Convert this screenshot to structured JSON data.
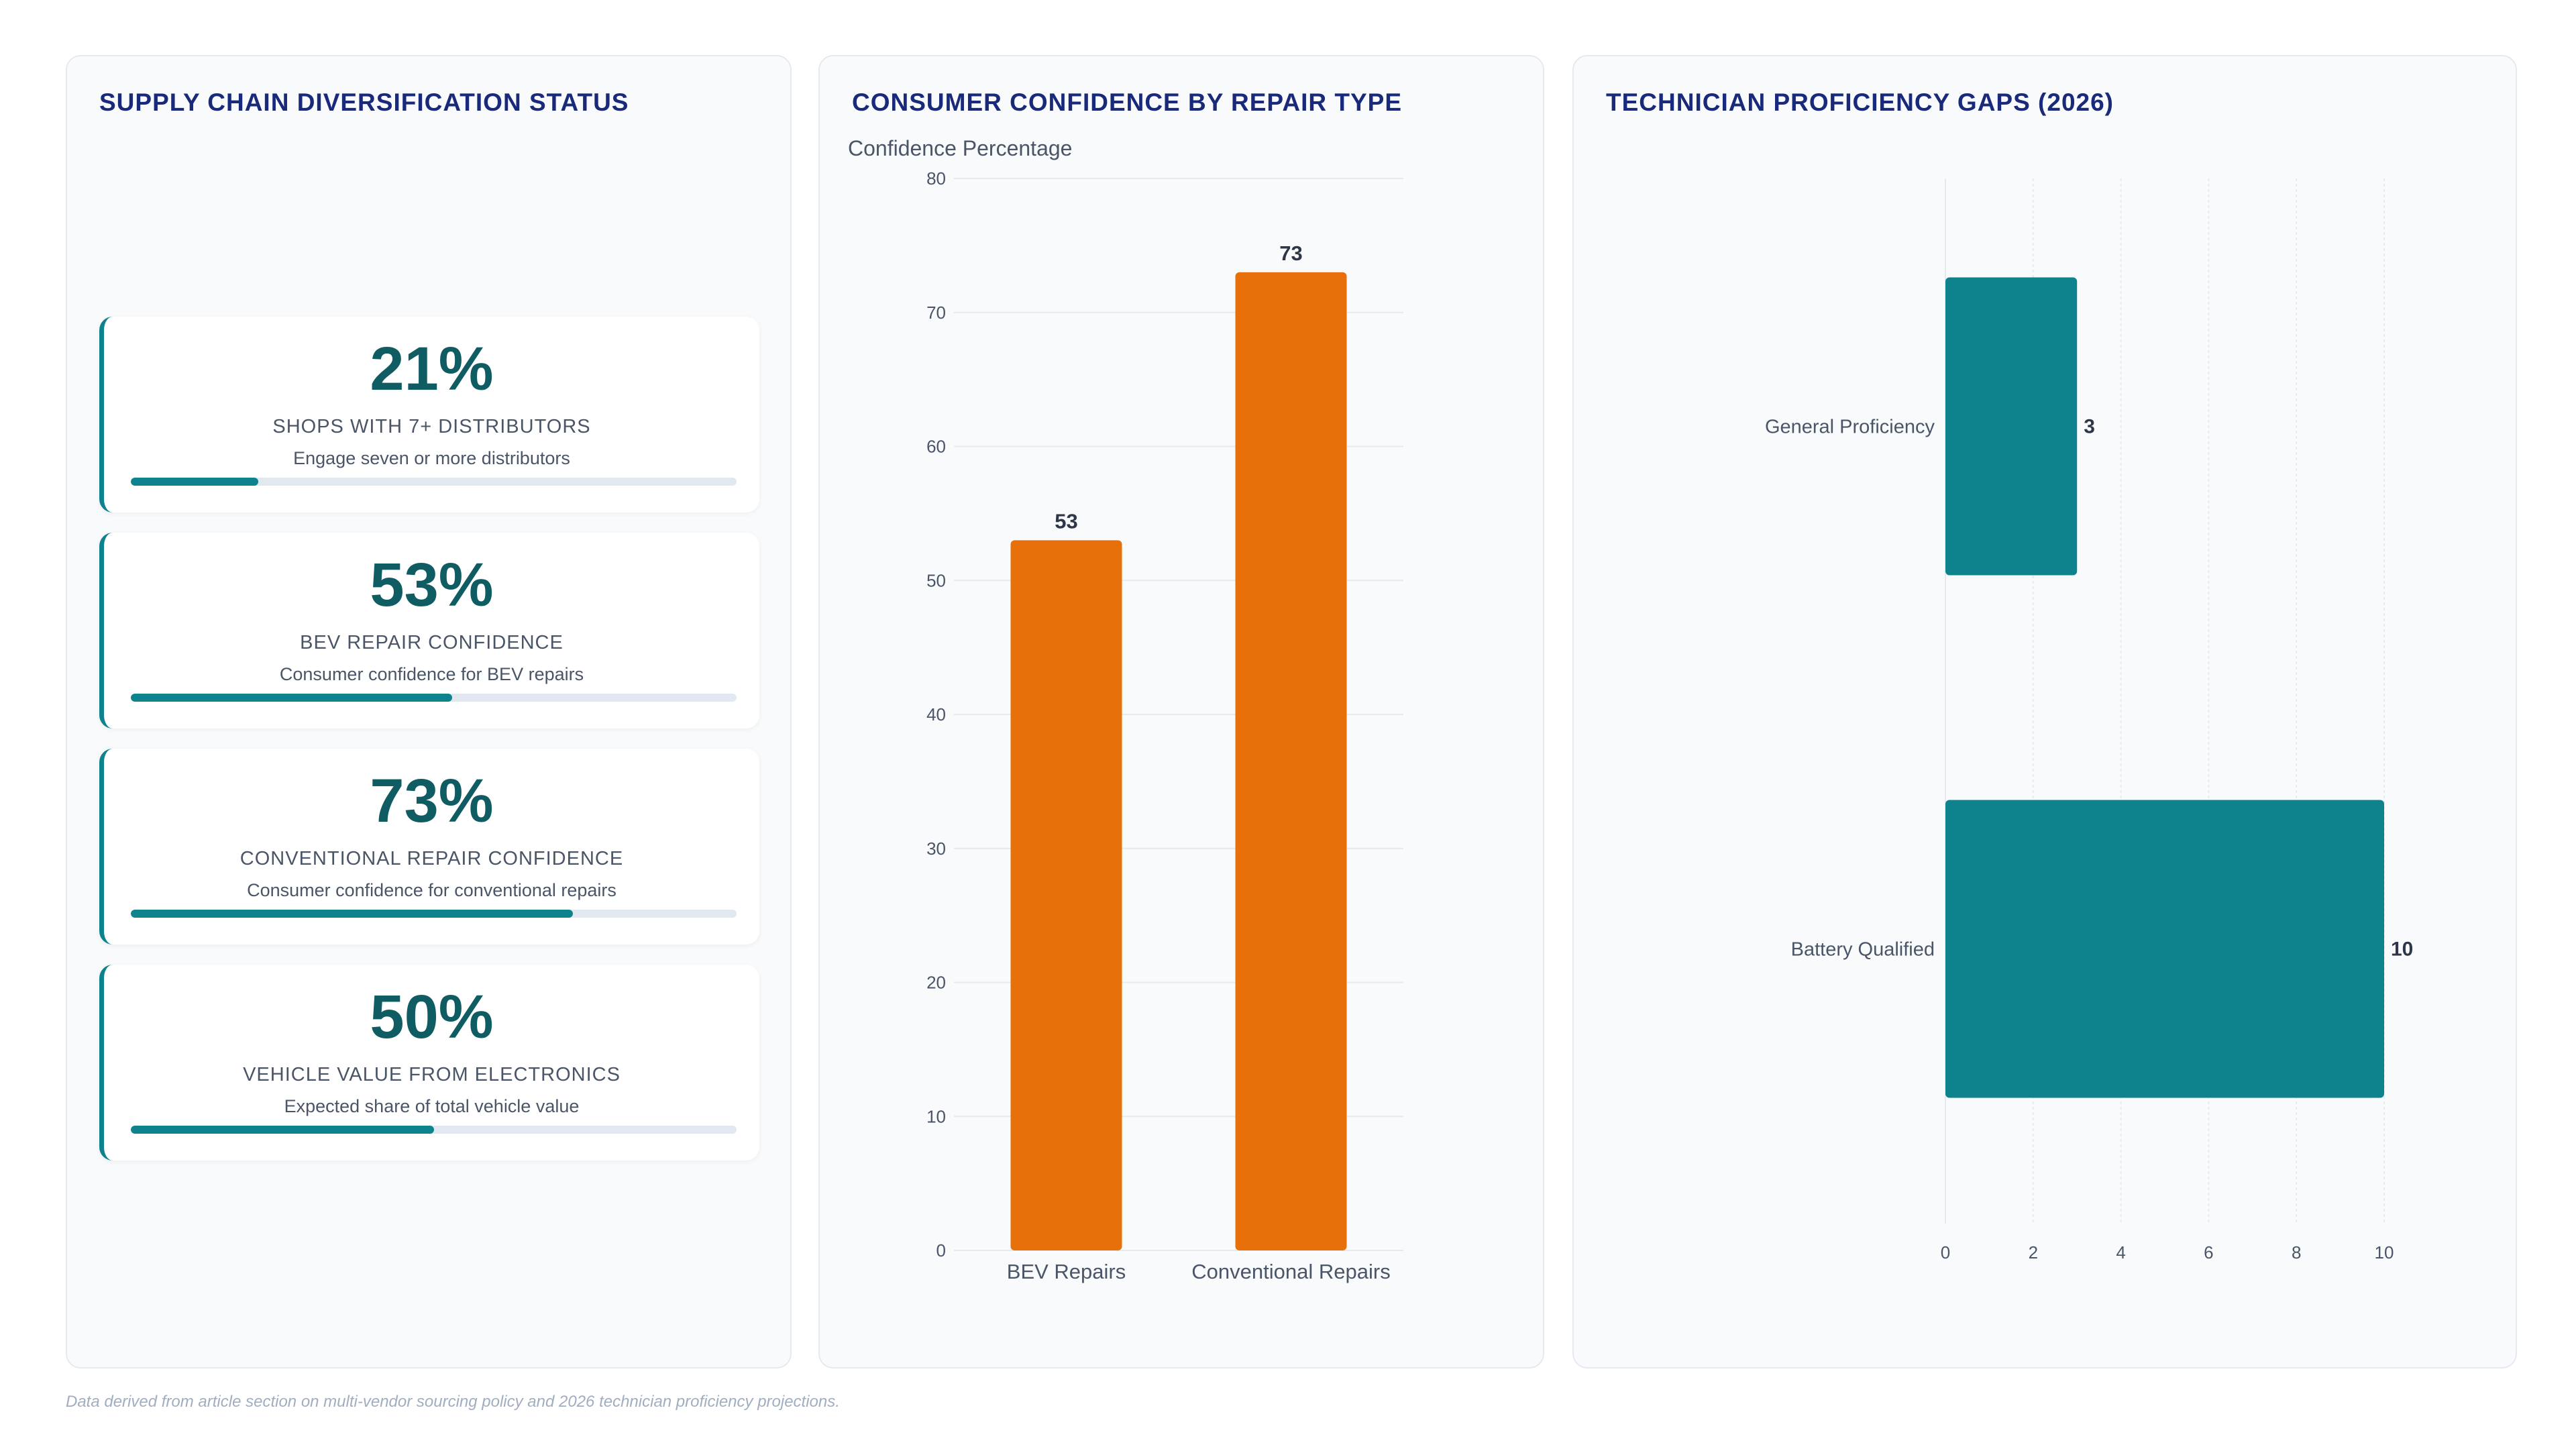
{
  "panels": {
    "left_title": "SUPPLY CHAIN DIVERSIFICATION STATUS",
    "mid_title": "CONSUMER CONFIDENCE BY REPAIR TYPE",
    "right_title": "TECHNICIAN PROFICIENCY GAPS (2026)"
  },
  "kpis": [
    {
      "value": "21%",
      "label": "SHOPS WITH 7+ DISTRIBUTORS",
      "desc": "Engage seven or more distributors",
      "progress": 0.21
    },
    {
      "value": "53%",
      "label": "BEV REPAIR CONFIDENCE",
      "desc": "Consumer confidence for BEV repairs",
      "progress": 0.53
    },
    {
      "value": "73%",
      "label": "CONVENTIONAL REPAIR CONFIDENCE",
      "desc": "Consumer confidence for conventional repairs",
      "progress": 0.73
    },
    {
      "value": "50%",
      "label": "VEHICLE VALUE FROM ELECTRONICS",
      "desc": "Expected share of total vehicle value",
      "progress": 0.5
    }
  ],
  "colors": {
    "accent": "#0e838e",
    "bar_orange": "#e8700a",
    "title": "#1a2a7a"
  },
  "chart_data": [
    {
      "type": "bar",
      "orientation": "vertical",
      "title": "CONSUMER CONFIDENCE BY REPAIR TYPE",
      "ylabel": "Confidence Percentage",
      "categories": [
        "BEV Repairs",
        "Conventional Repairs"
      ],
      "values": [
        53,
        73
      ],
      "ylim": [
        0,
        80
      ],
      "yticks": [
        0,
        10,
        20,
        30,
        40,
        50,
        60,
        70,
        80
      ],
      "data_labels": true,
      "grid": true
    },
    {
      "type": "bar",
      "orientation": "horizontal",
      "title": "TECHNICIAN PROFICIENCY GAPS (2026)",
      "categories": [
        "General Proficiency",
        "Battery Qualified"
      ],
      "values": [
        3,
        10
      ],
      "xlim": [
        0,
        10
      ],
      "xticks": [
        0,
        2,
        4,
        6,
        8,
        10
      ],
      "data_labels": true,
      "grid": true
    }
  ],
  "footnote": "Data derived from article section on multi-vendor sourcing policy and 2026 technician proficiency projections."
}
